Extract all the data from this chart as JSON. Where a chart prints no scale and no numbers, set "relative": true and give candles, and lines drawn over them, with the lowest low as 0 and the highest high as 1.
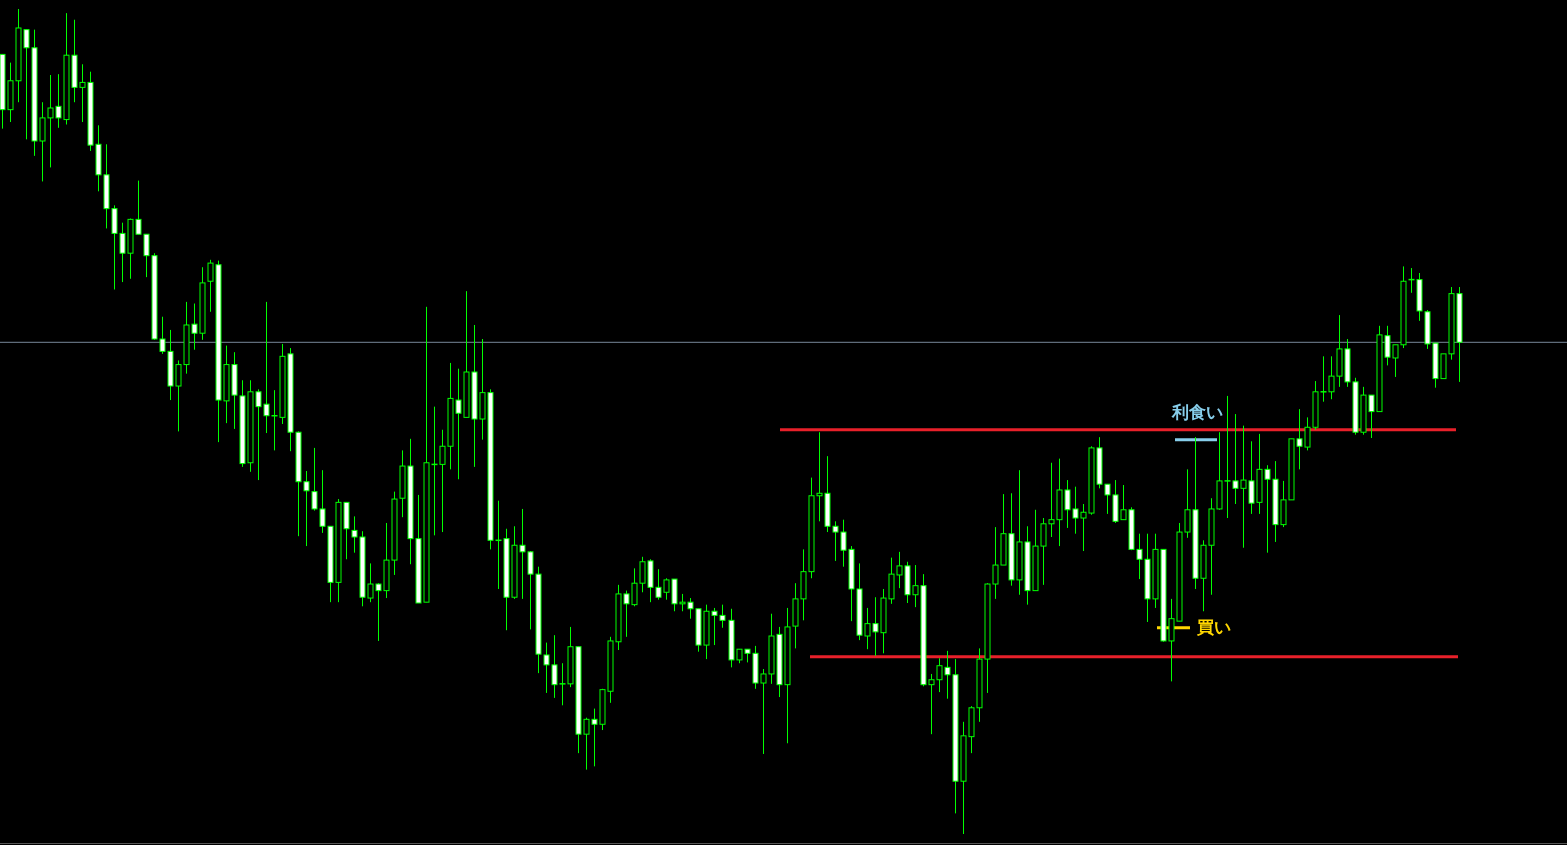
{
  "chart_data": {
    "type": "candlestick",
    "relative": true,
    "categories": [
      null,
      null,
      null,
      null,
      null,
      null,
      null,
      null,
      null,
      null,
      null,
      null,
      null,
      null,
      null,
      null,
      null,
      null,
      null,
      null,
      null,
      null,
      null,
      null,
      null,
      null,
      null,
      null,
      null,
      null,
      null,
      null,
      null,
      null,
      null,
      null,
      null,
      null,
      null,
      null,
      null,
      null,
      null,
      null,
      null,
      null,
      null,
      null,
      null,
      null,
      null,
      null,
      null,
      null,
      null,
      null,
      null,
      null,
      null,
      null,
      null,
      null,
      null,
      null,
      null,
      null,
      null,
      null,
      null,
      null,
      null,
      null,
      null,
      null,
      null,
      null,
      null,
      null,
      null,
      null,
      null,
      null,
      null,
      null,
      null,
      null,
      null,
      null,
      null,
      null,
      null,
      null,
      null,
      null,
      null,
      null,
      null,
      null,
      null,
      null,
      null,
      null,
      null,
      null,
      null,
      null,
      null,
      null,
      null,
      null,
      null,
      null,
      null,
      null,
      null,
      null,
      null,
      null,
      null,
      null,
      null,
      null,
      null,
      null,
      null,
      null,
      null,
      null,
      null,
      null,
      null,
      null,
      null,
      null,
      null,
      null,
      null,
      null,
      null,
      null,
      null,
      null,
      null,
      null,
      null,
      null,
      null,
      null,
      null,
      null,
      null,
      null,
      null,
      null,
      null,
      null,
      null,
      null,
      null,
      null,
      null,
      null,
      null,
      null,
      null,
      null,
      null,
      null,
      null,
      null,
      null,
      null,
      null,
      null,
      null,
      null,
      null,
      null,
      null,
      null,
      null,
      null,
      null
    ],
    "ohlc": [
      [
        0.945,
        0.945,
        0.855,
        0.878
      ],
      [
        0.878,
        0.935,
        0.863,
        0.913
      ],
      [
        0.913,
        1.0,
        0.887,
        0.977
      ],
      [
        0.975,
        0.975,
        0.842,
        0.953
      ],
      [
        0.953,
        0.975,
        0.822,
        0.84
      ],
      [
        0.84,
        0.887,
        0.791,
        0.868
      ],
      [
        0.868,
        0.92,
        0.808,
        0.88
      ],
      [
        0.882,
        0.921,
        0.856,
        0.868
      ],
      [
        0.866,
        0.995,
        0.86,
        0.944
      ],
      [
        0.944,
        0.987,
        0.887,
        0.905
      ],
      [
        0.905,
        0.933,
        0.863,
        0.911
      ],
      [
        0.911,
        0.924,
        0.828,
        0.835
      ],
      [
        0.836,
        0.859,
        0.779,
        0.799
      ],
      [
        0.799,
        0.836,
        0.734,
        0.758
      ],
      [
        0.758,
        0.762,
        0.66,
        0.728
      ],
      [
        0.728,
        0.741,
        0.669,
        0.704
      ],
      [
        0.704,
        0.746,
        0.673,
        0.745
      ],
      [
        0.745,
        0.792,
        0.727,
        0.727
      ],
      [
        0.727,
        0.727,
        0.675,
        0.701
      ],
      [
        0.701,
        0.704,
        0.599,
        0.6
      ],
      [
        0.6,
        0.627,
        0.582,
        0.585
      ],
      [
        0.585,
        0.611,
        0.526,
        0.543
      ],
      [
        0.543,
        0.574,
        0.488,
        0.569
      ],
      [
        0.569,
        0.645,
        0.558,
        0.617
      ],
      [
        0.618,
        0.643,
        0.587,
        0.607
      ],
      [
        0.607,
        0.687,
        0.599,
        0.668
      ],
      [
        0.67,
        0.696,
        0.633,
        0.692
      ],
      [
        0.69,
        0.695,
        0.475,
        0.526
      ],
      [
        0.525,
        0.592,
        0.498,
        0.569
      ],
      [
        0.569,
        0.584,
        0.491,
        0.532
      ],
      [
        0.531,
        0.55,
        0.445,
        0.449
      ],
      [
        0.45,
        0.55,
        0.439,
        0.536
      ],
      [
        0.536,
        0.539,
        0.429,
        0.518
      ],
      [
        0.521,
        0.645,
        0.486,
        0.507
      ],
      [
        0.507,
        0.538,
        0.465,
        0.507
      ],
      [
        0.505,
        0.594,
        0.497,
        0.579
      ],
      [
        0.582,
        0.589,
        0.464,
        0.487
      ],
      [
        0.487,
        0.488,
        0.361,
        0.427
      ],
      [
        0.427,
        0.44,
        0.349,
        0.416
      ],
      [
        0.415,
        0.468,
        0.392,
        0.394
      ],
      [
        0.394,
        0.441,
        0.365,
        0.373
      ],
      [
        0.373,
        0.373,
        0.281,
        0.305
      ],
      [
        0.305,
        0.406,
        0.281,
        0.402
      ],
      [
        0.402,
        0.402,
        0.333,
        0.37
      ],
      [
        0.368,
        0.385,
        0.341,
        0.36
      ],
      [
        0.36,
        0.367,
        0.276,
        0.287
      ],
      [
        0.286,
        0.328,
        0.281,
        0.303
      ],
      [
        0.303,
        0.304,
        0.234,
        0.295
      ],
      [
        0.295,
        0.377,
        0.286,
        0.332
      ],
      [
        0.332,
        0.415,
        0.314,
        0.406
      ],
      [
        0.407,
        0.465,
        0.384,
        0.446
      ],
      [
        0.446,
        0.479,
        0.327,
        0.358
      ],
      [
        0.358,
        0.411,
        0.28,
        0.28
      ],
      [
        0.281,
        0.639,
        0.281,
        0.45
      ],
      [
        0.448,
        0.518,
        0.362,
        0.448
      ],
      [
        0.448,
        0.49,
        0.366,
        0.47
      ],
      [
        0.47,
        0.571,
        0.442,
        0.528
      ],
      [
        0.526,
        0.564,
        0.43,
        0.51
      ],
      [
        0.505,
        0.658,
        0.505,
        0.56
      ],
      [
        0.56,
        0.617,
        0.445,
        0.503
      ],
      [
        0.503,
        0.6,
        0.478,
        0.535
      ],
      [
        0.535,
        0.539,
        0.345,
        0.356
      ],
      [
        0.356,
        0.404,
        0.297,
        0.356
      ],
      [
        0.358,
        0.37,
        0.247,
        0.287
      ],
      [
        0.287,
        0.373,
        0.285,
        0.35
      ],
      [
        0.35,
        0.394,
        0.285,
        0.342
      ],
      [
        0.342,
        0.343,
        0.248,
        0.315
      ],
      [
        0.315,
        0.324,
        0.195,
        0.218
      ],
      [
        0.217,
        0.232,
        0.171,
        0.205
      ],
      [
        0.205,
        0.241,
        0.165,
        0.181
      ],
      [
        0.182,
        0.207,
        0.156,
        0.182
      ],
      [
        0.182,
        0.251,
        0.178,
        0.227
      ],
      [
        0.227,
        0.227,
        0.098,
        0.121
      ],
      [
        0.121,
        0.141,
        0.078,
        0.139
      ],
      [
        0.139,
        0.152,
        0.082,
        0.133
      ],
      [
        0.133,
        0.176,
        0.126,
        0.175
      ],
      [
        0.173,
        0.239,
        0.159,
        0.234
      ],
      [
        0.233,
        0.302,
        0.223,
        0.291
      ],
      [
        0.291,
        0.295,
        0.239,
        0.279
      ],
      [
        0.278,
        0.322,
        0.276,
        0.304
      ],
      [
        0.304,
        0.336,
        0.293,
        0.33
      ],
      [
        0.331,
        0.333,
        0.281,
        0.299
      ],
      [
        0.299,
        0.321,
        0.284,
        0.287
      ],
      [
        0.293,
        0.31,
        0.284,
        0.308
      ],
      [
        0.309,
        0.309,
        0.27,
        0.279
      ],
      [
        0.279,
        0.291,
        0.27,
        0.281
      ],
      [
        0.281,
        0.286,
        0.261,
        0.273
      ],
      [
        0.273,
        0.273,
        0.221,
        0.229
      ],
      [
        0.229,
        0.278,
        0.212,
        0.27
      ],
      [
        0.27,
        0.274,
        0.229,
        0.265
      ],
      [
        0.265,
        0.278,
        0.25,
        0.259
      ],
      [
        0.259,
        0.273,
        0.202,
        0.211
      ],
      [
        0.211,
        0.224,
        0.207,
        0.224
      ],
      [
        0.224,
        0.224,
        0.208,
        0.219
      ],
      [
        0.219,
        0.228,
        0.176,
        0.183
      ],
      [
        0.183,
        0.2,
        0.097,
        0.194
      ],
      [
        0.194,
        0.267,
        0.182,
        0.24
      ],
      [
        0.242,
        0.251,
        0.166,
        0.181
      ],
      [
        0.181,
        0.274,
        0.11,
        0.251
      ],
      [
        0.252,
        0.304,
        0.225,
        0.285
      ],
      [
        0.285,
        0.345,
        0.259,
        0.318
      ],
      [
        0.318,
        0.432,
        0.31,
        0.41
      ],
      [
        0.41,
        0.487,
        0.379,
        0.413
      ],
      [
        0.413,
        0.458,
        0.366,
        0.373
      ],
      [
        0.373,
        0.379,
        0.331,
        0.366
      ],
      [
        0.366,
        0.381,
        0.324,
        0.344
      ],
      [
        0.345,
        0.349,
        0.258,
        0.297
      ],
      [
        0.297,
        0.328,
        0.235,
        0.241
      ],
      [
        0.24,
        0.274,
        0.224,
        0.255
      ],
      [
        0.255,
        0.287,
        0.216,
        0.245
      ],
      [
        0.244,
        0.297,
        0.219,
        0.286
      ],
      [
        0.285,
        0.335,
        0.279,
        0.315
      ],
      [
        0.314,
        0.342,
        0.298,
        0.325
      ],
      [
        0.325,
        0.33,
        0.28,
        0.29
      ],
      [
        0.29,
        0.326,
        0.275,
        0.301
      ],
      [
        0.301,
        0.315,
        0.179,
        0.181
      ],
      [
        0.181,
        0.194,
        0.121,
        0.187
      ],
      [
        0.187,
        0.213,
        0.172,
        0.204
      ],
      [
        0.202,
        0.222,
        0.164,
        0.193
      ],
      [
        0.193,
        0.212,
        0.025,
        0.064
      ],
      [
        0.064,
        0.136,
        0.0,
        0.119
      ],
      [
        0.118,
        0.155,
        0.098,
        0.153
      ],
      [
        0.153,
        0.225,
        0.136,
        0.212
      ],
      [
        0.212,
        0.304,
        0.171,
        0.303
      ],
      [
        0.303,
        0.372,
        0.285,
        0.326
      ],
      [
        0.326,
        0.412,
        0.326,
        0.364
      ],
      [
        0.364,
        0.413,
        0.301,
        0.308
      ],
      [
        0.308,
        0.441,
        0.29,
        0.354
      ],
      [
        0.354,
        0.373,
        0.278,
        0.295
      ],
      [
        0.295,
        0.393,
        0.295,
        0.349
      ],
      [
        0.349,
        0.383,
        0.302,
        0.376
      ],
      [
        0.376,
        0.45,
        0.36,
        0.381
      ],
      [
        0.381,
        0.455,
        0.349,
        0.417
      ],
      [
        0.417,
        0.429,
        0.371,
        0.393
      ],
      [
        0.394,
        0.421,
        0.364,
        0.383
      ],
      [
        0.383,
        0.4,
        0.343,
        0.39
      ],
      [
        0.389,
        0.47,
        0.387,
        0.468
      ],
      [
        0.468,
        0.481,
        0.419,
        0.424
      ],
      [
        0.424,
        0.424,
        0.388,
        0.411
      ],
      [
        0.411,
        0.429,
        0.377,
        0.379
      ],
      [
        0.381,
        0.423,
        0.381,
        0.393
      ],
      [
        0.393,
        0.396,
        0.344,
        0.345
      ],
      [
        0.345,
        0.364,
        0.309,
        0.333
      ],
      [
        0.333,
        0.364,
        0.257,
        0.285
      ],
      [
        0.285,
        0.364,
        0.274,
        0.345
      ],
      [
        0.345,
        0.345,
        0.233,
        0.234
      ],
      [
        0.234,
        0.285,
        0.185,
        0.261
      ],
      [
        0.258,
        0.377,
        0.258,
        0.366
      ],
      [
        0.366,
        0.442,
        0.359,
        0.393
      ],
      [
        0.393,
        0.481,
        0.297,
        0.31
      ],
      [
        0.31,
        0.356,
        0.27,
        0.35
      ],
      [
        0.35,
        0.407,
        0.29,
        0.394
      ],
      [
        0.394,
        0.487,
        0.393,
        0.428
      ],
      [
        0.428,
        0.531,
        0.383,
        0.428
      ],
      [
        0.428,
        0.509,
        0.4,
        0.419
      ],
      [
        0.419,
        0.495,
        0.347,
        0.429
      ],
      [
        0.428,
        0.476,
        0.388,
        0.401
      ],
      [
        0.402,
        0.485,
        0.388,
        0.442
      ],
      [
        0.442,
        0.447,
        0.341,
        0.43
      ],
      [
        0.43,
        0.452,
        0.354,
        0.375
      ],
      [
        0.375,
        0.428,
        0.372,
        0.405
      ],
      [
        0.405,
        0.479,
        0.405,
        0.479
      ],
      [
        0.479,
        0.515,
        0.442,
        0.47
      ],
      [
        0.469,
        0.505,
        0.465,
        0.493
      ],
      [
        0.493,
        0.549,
        0.49,
        0.536
      ],
      [
        0.536,
        0.579,
        0.524,
        0.536
      ],
      [
        0.536,
        0.579,
        0.527,
        0.555
      ],
      [
        0.555,
        0.629,
        0.542,
        0.588
      ],
      [
        0.588,
        0.6,
        0.542,
        0.548
      ],
      [
        0.548,
        0.553,
        0.484,
        0.487
      ],
      [
        0.487,
        0.542,
        0.484,
        0.532
      ],
      [
        0.532,
        0.532,
        0.48,
        0.512
      ],
      [
        0.512,
        0.616,
        0.512,
        0.605
      ],
      [
        0.604,
        0.616,
        0.568,
        0.578
      ],
      [
        0.577,
        0.593,
        0.554,
        0.593
      ],
      [
        0.593,
        0.688,
        0.589,
        0.67
      ],
      [
        0.672,
        0.686,
        0.656,
        0.672
      ],
      [
        0.672,
        0.68,
        0.622,
        0.634
      ],
      [
        0.633,
        0.635,
        0.588,
        0.594
      ],
      [
        0.595,
        0.595,
        0.541,
        0.552
      ],
      [
        0.552,
        0.582,
        0.552,
        0.582
      ],
      [
        0.582,
        0.663,
        0.575,
        0.655
      ],
      [
        0.655,
        0.663,
        0.548,
        0.596
      ]
    ],
    "ref_lines": [
      {
        "axis": "y",
        "value": 0.596,
        "color": "#778899"
      },
      {
        "axis": "y",
        "value": 0.49,
        "color": "#e8202a"
      },
      {
        "axis": "y",
        "value": 0.215,
        "color": "#e8202a"
      },
      {
        "axis": "y",
        "value": 0.478,
        "label": "利食い",
        "color": "#87ceeb"
      },
      {
        "axis": "y",
        "value": 0.25,
        "label": "買い",
        "color": "#ffd700"
      }
    ]
  }
}
